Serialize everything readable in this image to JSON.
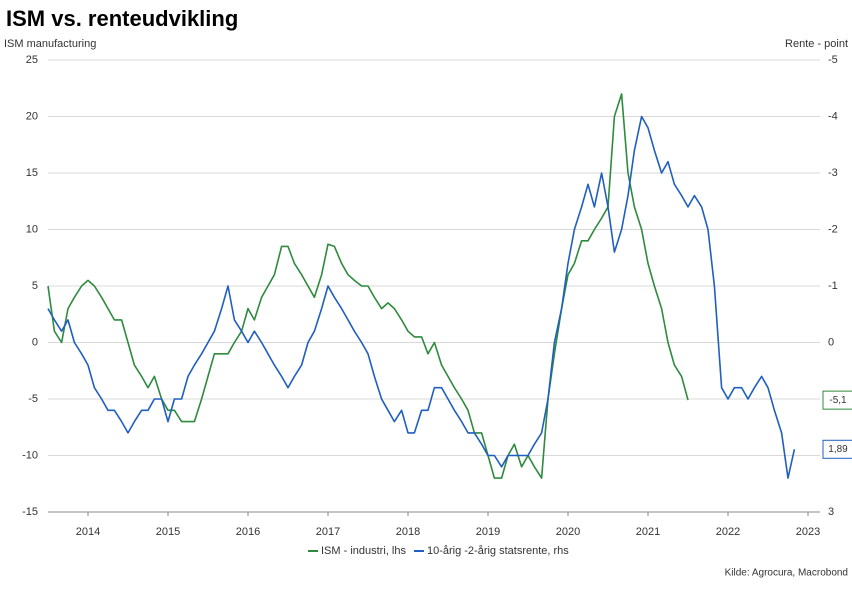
{
  "chart_data": {
    "type": "line",
    "title": "ISM vs. renteudvikling",
    "y_label": "ISM manufacturing",
    "y2_label": "Rente - point",
    "source": "Kilde: Agrocura, Macrobond",
    "xlim": [
      2014,
      2023.65
    ],
    "xticks": [
      {
        "value": 2014.5,
        "label": "2014"
      },
      {
        "value": 2015.5,
        "label": "2015"
      },
      {
        "value": 2016.5,
        "label": "2016"
      },
      {
        "value": 2017.5,
        "label": "2017"
      },
      {
        "value": 2018.5,
        "label": "2018"
      },
      {
        "value": 2019.5,
        "label": "2019"
      },
      {
        "value": 2020.5,
        "label": "2020"
      },
      {
        "value": 2021.5,
        "label": "2021"
      },
      {
        "value": 2022.5,
        "label": "2022"
      },
      {
        "value": 2023.5,
        "label": "2023"
      }
    ],
    "ylim": [
      -15,
      25
    ],
    "yticks": [
      -15,
      -10,
      -5,
      0,
      5,
      10,
      15,
      20,
      25
    ],
    "y2lim": [
      -5,
      3
    ],
    "y2_inverted": true,
    "y2ticks": [
      -5,
      -4,
      -3,
      -2,
      -1,
      0,
      1,
      2,
      3
    ],
    "grid": true,
    "series": [
      {
        "name": "ISM - industri, lhs",
        "color": "#2e8b3e",
        "axis": "y",
        "end_label": {
          "value": -5.1,
          "label": "-5,1"
        },
        "x": [
          2014,
          2014.08,
          2014.17,
          2014.25,
          2014.33,
          2014.42,
          2014.5,
          2014.58,
          2014.67,
          2014.75,
          2014.83,
          2014.92,
          2015,
          2015.08,
          2015.17,
          2015.25,
          2015.33,
          2015.42,
          2015.5,
          2015.58,
          2015.67,
          2015.75,
          2015.83,
          2015.92,
          2016,
          2016.08,
          2016.17,
          2016.25,
          2016.33,
          2016.42,
          2016.5,
          2016.58,
          2016.67,
          2016.75,
          2016.83,
          2016.92,
          2017,
          2017.08,
          2017.17,
          2017.25,
          2017.33,
          2017.42,
          2017.5,
          2017.58,
          2017.67,
          2017.75,
          2017.83,
          2017.92,
          2018,
          2018.08,
          2018.17,
          2018.25,
          2018.33,
          2018.42,
          2018.5,
          2018.58,
          2018.67,
          2018.75,
          2018.83,
          2018.92,
          2019,
          2019.08,
          2019.17,
          2019.25,
          2019.33,
          2019.42,
          2019.5,
          2019.58,
          2019.67,
          2019.75,
          2019.83,
          2019.92,
          2020,
          2020.08,
          2020.17,
          2020.25,
          2020.33,
          2020.42,
          2020.5,
          2020.58,
          2020.67,
          2020.75,
          2020.83,
          2020.92,
          2021,
          2021.08,
          2021.17,
          2021.25,
          2021.33,
          2021.42,
          2021.5,
          2021.58,
          2021.67,
          2021.75,
          2021.83,
          2021.92,
          2022
        ],
        "values": [
          5,
          1,
          0,
          3,
          4,
          5,
          5.5,
          5,
          4,
          3,
          2,
          2,
          0,
          -2,
          -3,
          -4,
          -3,
          -5,
          -6,
          -6,
          -7,
          -7,
          -7,
          -5,
          -3,
          -1,
          -1,
          -1,
          0,
          1,
          3,
          2,
          4,
          5,
          6,
          8.5,
          8.5,
          7,
          6,
          5,
          4,
          6,
          8.7,
          8.5,
          7,
          6,
          5.5,
          5,
          5,
          4,
          3,
          3.5,
          3,
          2,
          1,
          0.5,
          0.5,
          -1,
          0,
          -2,
          -3,
          -4,
          -5,
          -6,
          -8,
          -8,
          -10,
          -12,
          -12,
          -10,
          -9,
          -11,
          -10,
          -11,
          -12,
          -5,
          -1,
          3,
          6,
          7,
          9,
          9,
          10,
          11,
          12,
          20,
          22,
          15,
          12,
          10,
          7,
          5,
          3,
          0,
          -2,
          -3,
          -5.1
        ]
      },
      {
        "name": "10-årig -2-årig statsrente, rhs",
        "color": "#1f5fbf",
        "axis": "y2",
        "end_label": {
          "value": 1.89,
          "label": "1,89"
        },
        "x": [
          2014,
          2014.08,
          2014.17,
          2014.25,
          2014.33,
          2014.42,
          2014.5,
          2014.58,
          2014.67,
          2014.75,
          2014.83,
          2014.92,
          2015,
          2015.08,
          2015.17,
          2015.25,
          2015.33,
          2015.42,
          2015.5,
          2015.58,
          2015.67,
          2015.75,
          2015.83,
          2015.92,
          2016,
          2016.08,
          2016.17,
          2016.25,
          2016.33,
          2016.42,
          2016.5,
          2016.58,
          2016.67,
          2016.75,
          2016.83,
          2016.92,
          2017,
          2017.08,
          2017.17,
          2017.25,
          2017.33,
          2017.42,
          2017.5,
          2017.58,
          2017.67,
          2017.75,
          2017.83,
          2017.92,
          2018,
          2018.08,
          2018.17,
          2018.25,
          2018.33,
          2018.42,
          2018.5,
          2018.58,
          2018.67,
          2018.75,
          2018.83,
          2018.92,
          2019,
          2019.08,
          2019.17,
          2019.25,
          2019.33,
          2019.42,
          2019.5,
          2019.58,
          2019.67,
          2019.75,
          2019.83,
          2019.92,
          2020,
          2020.08,
          2020.17,
          2020.25,
          2020.33,
          2020.42,
          2020.5,
          2020.58,
          2020.67,
          2020.75,
          2020.83,
          2020.92,
          2021,
          2021.08,
          2021.17,
          2021.25,
          2021.33,
          2021.42,
          2021.5,
          2021.58,
          2021.67,
          2021.75,
          2021.83,
          2021.92,
          2022,
          2022.08,
          2022.17,
          2022.25,
          2022.33,
          2022.42,
          2022.5,
          2022.58,
          2022.67,
          2022.75,
          2022.83,
          2022.92,
          2023,
          2023.08,
          2023.17,
          2023.25,
          2023.33
        ],
        "values": [
          -0.6,
          -0.4,
          -0.2,
          -0.4,
          0,
          0.2,
          0.4,
          0.8,
          1,
          1.2,
          1.2,
          1.4,
          1.6,
          1.4,
          1.2,
          1.2,
          1,
          1,
          1.4,
          1,
          1,
          0.6,
          0.4,
          0.2,
          0,
          -0.2,
          -0.6,
          -1,
          -0.4,
          -0.2,
          0,
          -0.2,
          0,
          0.2,
          0.4,
          0.6,
          0.8,
          0.6,
          0.4,
          0,
          -0.2,
          -0.6,
          -1,
          -0.8,
          -0.6,
          -0.4,
          -0.2,
          0,
          0.2,
          0.6,
          1,
          1.2,
          1.4,
          1.2,
          1.6,
          1.6,
          1.2,
          1.2,
          0.8,
          0.8,
          1,
          1.2,
          1.4,
          1.6,
          1.6,
          1.8,
          2,
          2,
          2.2,
          2,
          2,
          2,
          2,
          1.8,
          1.6,
          1,
          0,
          -0.6,
          -1.4,
          -2,
          -2.4,
          -2.8,
          -2.4,
          -3,
          -2.4,
          -1.6,
          -2,
          -2.6,
          -3.4,
          -4,
          -3.8,
          -3.4,
          -3,
          -3.2,
          -2.8,
          -2.6,
          -2.4,
          -2.6,
          -2.4,
          -2,
          -1,
          0.8,
          1,
          0.8,
          0.8,
          1,
          0.8,
          0.6,
          0.8,
          1.2,
          1.6,
          2.4,
          1.89
        ]
      }
    ]
  }
}
